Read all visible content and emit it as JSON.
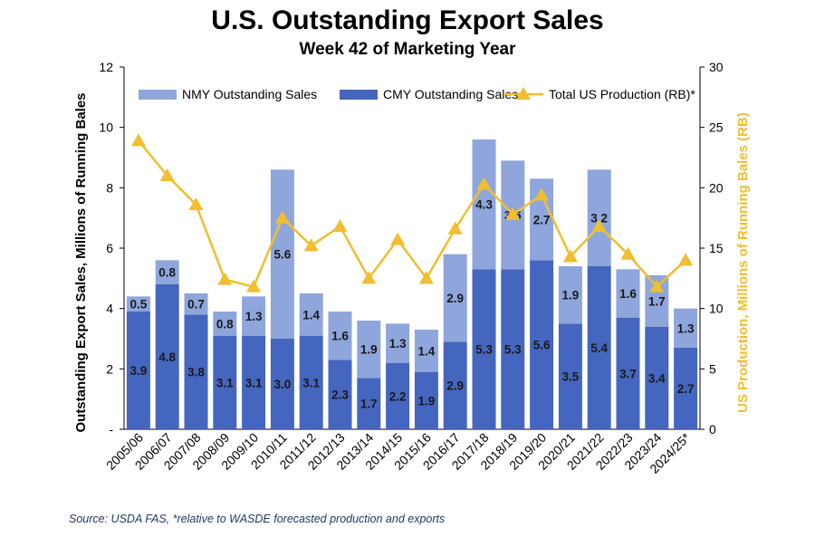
{
  "chart_data": {
    "type": "bar",
    "title": "U.S. Outstanding Export Sales",
    "subtitle": "Week 42 of Marketing Year",
    "ylabel": "Outstanding Export Sales, Millions of Running Bales",
    "y2label": "US Production, Millions of Running Bales (RB)",
    "ylim": [
      0,
      12
    ],
    "y2lim": [
      0,
      30
    ],
    "yticks": [
      "-",
      "2",
      "4",
      "6",
      "8",
      "10",
      "12"
    ],
    "y2ticks": [
      "0",
      "5",
      "10",
      "15",
      "20",
      "25",
      "30"
    ],
    "categories": [
      "2005/06",
      "2006/07",
      "2007/08",
      "2008/09",
      "2009/10",
      "2010/11",
      "2011/12",
      "2012/13",
      "2013/14",
      "2014/15",
      "2015/16",
      "2016/17",
      "2017/18",
      "2018/19",
      "2019/20",
      "2020/21",
      "2021/22",
      "2022/23",
      "2023/24",
      "2024/25*"
    ],
    "series": [
      {
        "name": "CMY Outstanding Sales",
        "type": "bar",
        "stack": "bottom",
        "color": "#4566be",
        "values": [
          3.9,
          4.8,
          3.8,
          3.1,
          3.1,
          3.0,
          3.1,
          2.3,
          1.7,
          2.2,
          1.9,
          2.9,
          5.3,
          5.3,
          5.6,
          3.5,
          5.4,
          3.7,
          3.4,
          2.7
        ],
        "labels": [
          "3.9",
          "4.8",
          "3.8",
          "3.1",
          "3.1",
          "3.0",
          "3.1",
          "2.3",
          "1.7",
          "2.2",
          "1.9",
          "2.9",
          "5.3",
          "5.3",
          "5.6",
          "3.5",
          "5.4",
          "3.7",
          "3.4",
          "2.7"
        ]
      },
      {
        "name": "NMY Outstanding Sales",
        "type": "bar",
        "stack": "top",
        "color": "#8ea6dc",
        "values": [
          0.5,
          0.8,
          0.7,
          0.8,
          1.3,
          5.6,
          1.4,
          1.6,
          1.9,
          1.3,
          1.4,
          2.9,
          4.3,
          3.6,
          2.7,
          1.9,
          3.2,
          1.6,
          1.7,
          1.3
        ],
        "labels": [
          "0.5",
          "0.8",
          "0.7",
          "0.8",
          "1.3",
          "5.6",
          "1.4",
          "1.6",
          "1.9",
          "1.3",
          "1.4",
          "2.9",
          "4.3",
          "3.6",
          "2.7",
          "1.9",
          "3.2",
          "1.6",
          "1.7",
          "1.3"
        ]
      },
      {
        "name": "Total US Production (RB)*",
        "type": "line",
        "axis": "right",
        "color": "#f0be2e",
        "values": [
          23.9,
          21.0,
          18.6,
          12.4,
          11.8,
          17.5,
          15.2,
          16.8,
          12.5,
          15.7,
          12.5,
          16.6,
          20.3,
          17.8,
          19.4,
          14.3,
          16.8,
          14.5,
          11.8,
          14.0
        ]
      }
    ],
    "legend": "top",
    "grid": false
  },
  "source": "Source: USDA FAS, *relative to WASDE forecasted production and exports"
}
